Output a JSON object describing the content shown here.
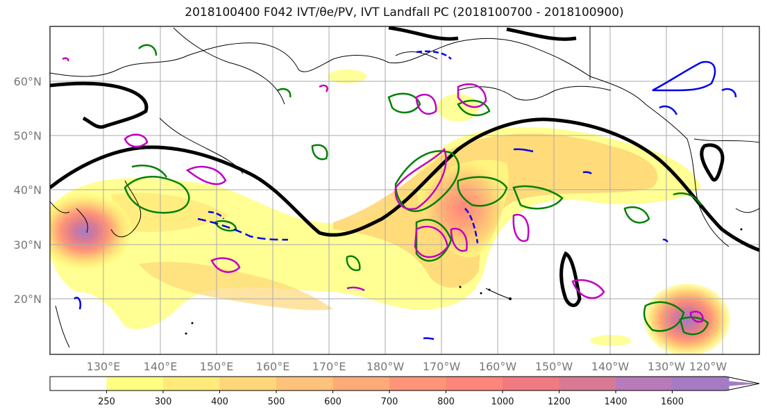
{
  "title": "2018100400 F042 IVT/θe/PV, IVT Landfall PC (2018100700 - 2018100900)",
  "lat_labels": [
    "60°N",
    "50°N",
    "40°N",
    "30°N",
    "20°N"
  ],
  "lon_labels": [
    "130°E",
    "140°E",
    "150°E",
    "160°E",
    "170°E",
    "180°W",
    "170°W",
    "160°W",
    "150°W",
    "140°W",
    "130°W",
    "120°W"
  ],
  "colorbar": {
    "ticks": [
      "250",
      "300",
      "400",
      "500",
      "600",
      "700",
      "800",
      "1000",
      "1200",
      "1400",
      "1600"
    ],
    "colors": [
      "#ffffff",
      "#ffff80",
      "#ffea7a",
      "#ffd778",
      "#ffc27a",
      "#ffab78",
      "#ff9477",
      "#ff857b",
      "#f07a80",
      "#d87a95",
      "#b87ab8",
      "#a57bc4"
    ]
  },
  "colors": {
    "ivt_contour_black": "#000000",
    "theta_e_green": "#008000",
    "pv_magenta": "#c000c0",
    "blue": "#0000ee",
    "grid": "#aaaaaa"
  }
}
